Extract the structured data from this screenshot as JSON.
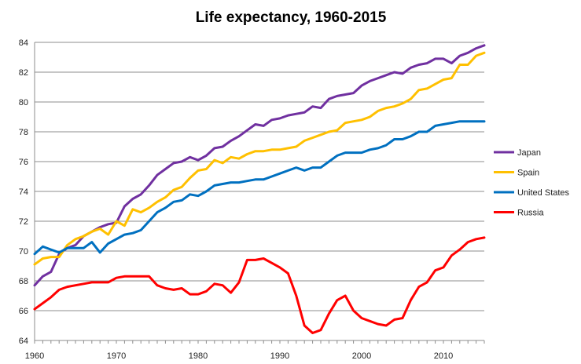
{
  "chart_data": {
    "type": "line",
    "title": "Life expectancy, 1960-2015",
    "xlabel": "",
    "ylabel": "",
    "xlim": [
      1960,
      2015
    ],
    "ylim": [
      64,
      85
    ],
    "x_ticks": [
      1960,
      1970,
      1980,
      1990,
      2000,
      2010
    ],
    "y_ticks": [
      64,
      66,
      68,
      70,
      72,
      74,
      76,
      78,
      80,
      82,
      84
    ],
    "grid": "horizontal",
    "legend": "right",
    "x": [
      1960,
      1961,
      1962,
      1963,
      1964,
      1965,
      1966,
      1967,
      1968,
      1969,
      1970,
      1971,
      1972,
      1973,
      1974,
      1975,
      1976,
      1977,
      1978,
      1979,
      1980,
      1981,
      1982,
      1983,
      1984,
      1985,
      1986,
      1987,
      1988,
      1989,
      1990,
      1991,
      1992,
      1993,
      1994,
      1995,
      1996,
      1997,
      1998,
      1999,
      2000,
      2001,
      2002,
      2003,
      2004,
      2005,
      2006,
      2007,
      2008,
      2009,
      2010,
      2011,
      2012,
      2013,
      2014,
      2015
    ],
    "series": [
      {
        "name": "Japan",
        "color": "#7030A0",
        "values": [
          67.7,
          68.3,
          68.6,
          69.8,
          70.2,
          70.4,
          71.0,
          71.3,
          71.6,
          71.8,
          71.9,
          73.0,
          73.5,
          73.8,
          74.4,
          75.1,
          75.5,
          75.9,
          76.0,
          76.3,
          76.1,
          76.4,
          76.9,
          77.0,
          77.4,
          77.7,
          78.1,
          78.5,
          78.4,
          78.8,
          78.9,
          79.1,
          79.2,
          79.3,
          79.7,
          79.6,
          80.2,
          80.4,
          80.5,
          80.6,
          81.1,
          81.4,
          81.6,
          81.8,
          82.0,
          81.9,
          82.3,
          82.5,
          82.6,
          82.9,
          82.9,
          82.6,
          83.1,
          83.3,
          83.6,
          83.8
        ]
      },
      {
        "name": "Spain",
        "color": "#FFC000",
        "values": [
          69.1,
          69.5,
          69.6,
          69.6,
          70.4,
          70.8,
          71.0,
          71.3,
          71.5,
          71.1,
          72.0,
          71.7,
          72.8,
          72.6,
          72.9,
          73.3,
          73.6,
          74.1,
          74.3,
          74.9,
          75.4,
          75.5,
          76.1,
          75.9,
          76.3,
          76.2,
          76.5,
          76.7,
          76.7,
          76.8,
          76.8,
          76.9,
          77.0,
          77.4,
          77.6,
          77.8,
          78.0,
          78.1,
          78.6,
          78.7,
          78.8,
          79.0,
          79.4,
          79.6,
          79.7,
          79.9,
          80.2,
          80.8,
          80.9,
          81.2,
          81.5,
          81.6,
          82.5,
          82.5,
          83.1,
          83.3
        ]
      },
      {
        "name": "United States",
        "color": "#0070C0",
        "values": [
          69.8,
          70.3,
          70.1,
          69.9,
          70.2,
          70.2,
          70.2,
          70.6,
          69.9,
          70.5,
          70.8,
          71.1,
          71.2,
          71.4,
          72.0,
          72.6,
          72.9,
          73.3,
          73.4,
          73.8,
          73.7,
          74.0,
          74.4,
          74.5,
          74.6,
          74.6,
          74.7,
          74.8,
          74.8,
          75.0,
          75.2,
          75.4,
          75.6,
          75.4,
          75.6,
          75.6,
          76.0,
          76.4,
          76.6,
          76.6,
          76.6,
          76.8,
          76.9,
          77.1,
          77.5,
          77.5,
          77.7,
          78.0,
          78.0,
          78.4,
          78.5,
          78.6,
          78.7,
          78.7,
          78.7,
          78.7
        ]
      },
      {
        "name": "Russia",
        "color": "#FF0000",
        "values": [
          66.1,
          66.5,
          66.9,
          67.4,
          67.6,
          67.7,
          67.8,
          67.9,
          67.9,
          67.9,
          68.2,
          68.3,
          68.3,
          68.3,
          68.3,
          67.7,
          67.5,
          67.4,
          67.5,
          67.1,
          67.1,
          67.3,
          67.8,
          67.7,
          67.2,
          67.9,
          69.4,
          69.4,
          69.5,
          69.2,
          68.9,
          68.5,
          67.0,
          65.0,
          64.5,
          64.7,
          65.8,
          66.7,
          67.0,
          66.0,
          65.5,
          65.3,
          65.1,
          65.0,
          65.4,
          65.5,
          66.7,
          67.6,
          67.9,
          68.7,
          68.9,
          69.7,
          70.1,
          70.6,
          70.8,
          70.9
        ]
      }
    ]
  }
}
